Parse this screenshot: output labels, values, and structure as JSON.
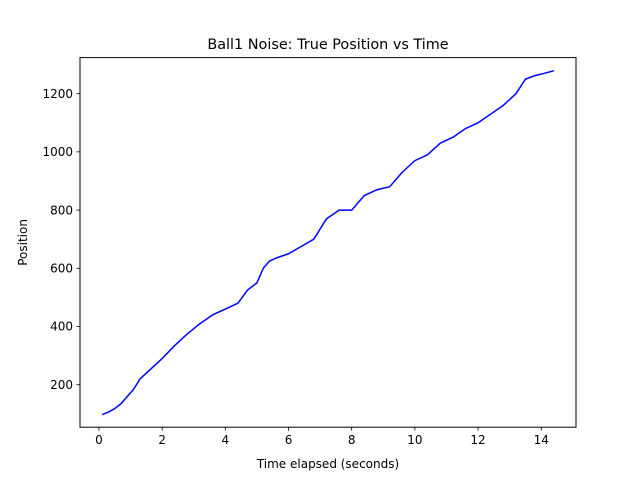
{
  "chart_data": {
    "type": "line",
    "title": "Ball1 Noise: True Position vs Time",
    "xlabel": "Time elapsed (seconds)",
    "ylabel": "Position",
    "xlim": [
      -0.6,
      15.1
    ],
    "ylim": [
      54,
      1324
    ],
    "xticks": [
      0,
      2,
      4,
      6,
      8,
      10,
      12,
      14
    ],
    "yticks": [
      200,
      400,
      600,
      800,
      1000,
      1200
    ],
    "grid": false,
    "series_color": "#0000ff",
    "series": [
      {
        "x": [
          0.1,
          0.3,
          0.5,
          0.7,
          0.9,
          1.1,
          1.3,
          1.6,
          2.0,
          2.4,
          2.8,
          3.2,
          3.6,
          4.0,
          4.4,
          4.7,
          5.0,
          5.2,
          5.4,
          5.6,
          6.0,
          6.4,
          6.8,
          7.2,
          7.6,
          8.0,
          8.4,
          8.8,
          9.2,
          9.6,
          10.0,
          10.4,
          10.8,
          11.2,
          11.6,
          12.0,
          12.4,
          12.8,
          13.2,
          13.5,
          13.8,
          14.1,
          14.4
        ],
        "y": [
          97,
          106,
          118,
          135,
          160,
          185,
          220,
          250,
          290,
          335,
          375,
          410,
          440,
          460,
          480,
          525,
          550,
          600,
          625,
          635,
          650,
          675,
          700,
          770,
          800,
          800,
          850,
          870,
          880,
          930,
          970,
          990,
          1030,
          1050,
          1080,
          1100,
          1130,
          1160,
          1200,
          1250,
          1262,
          1270,
          1279
        ]
      }
    ]
  }
}
